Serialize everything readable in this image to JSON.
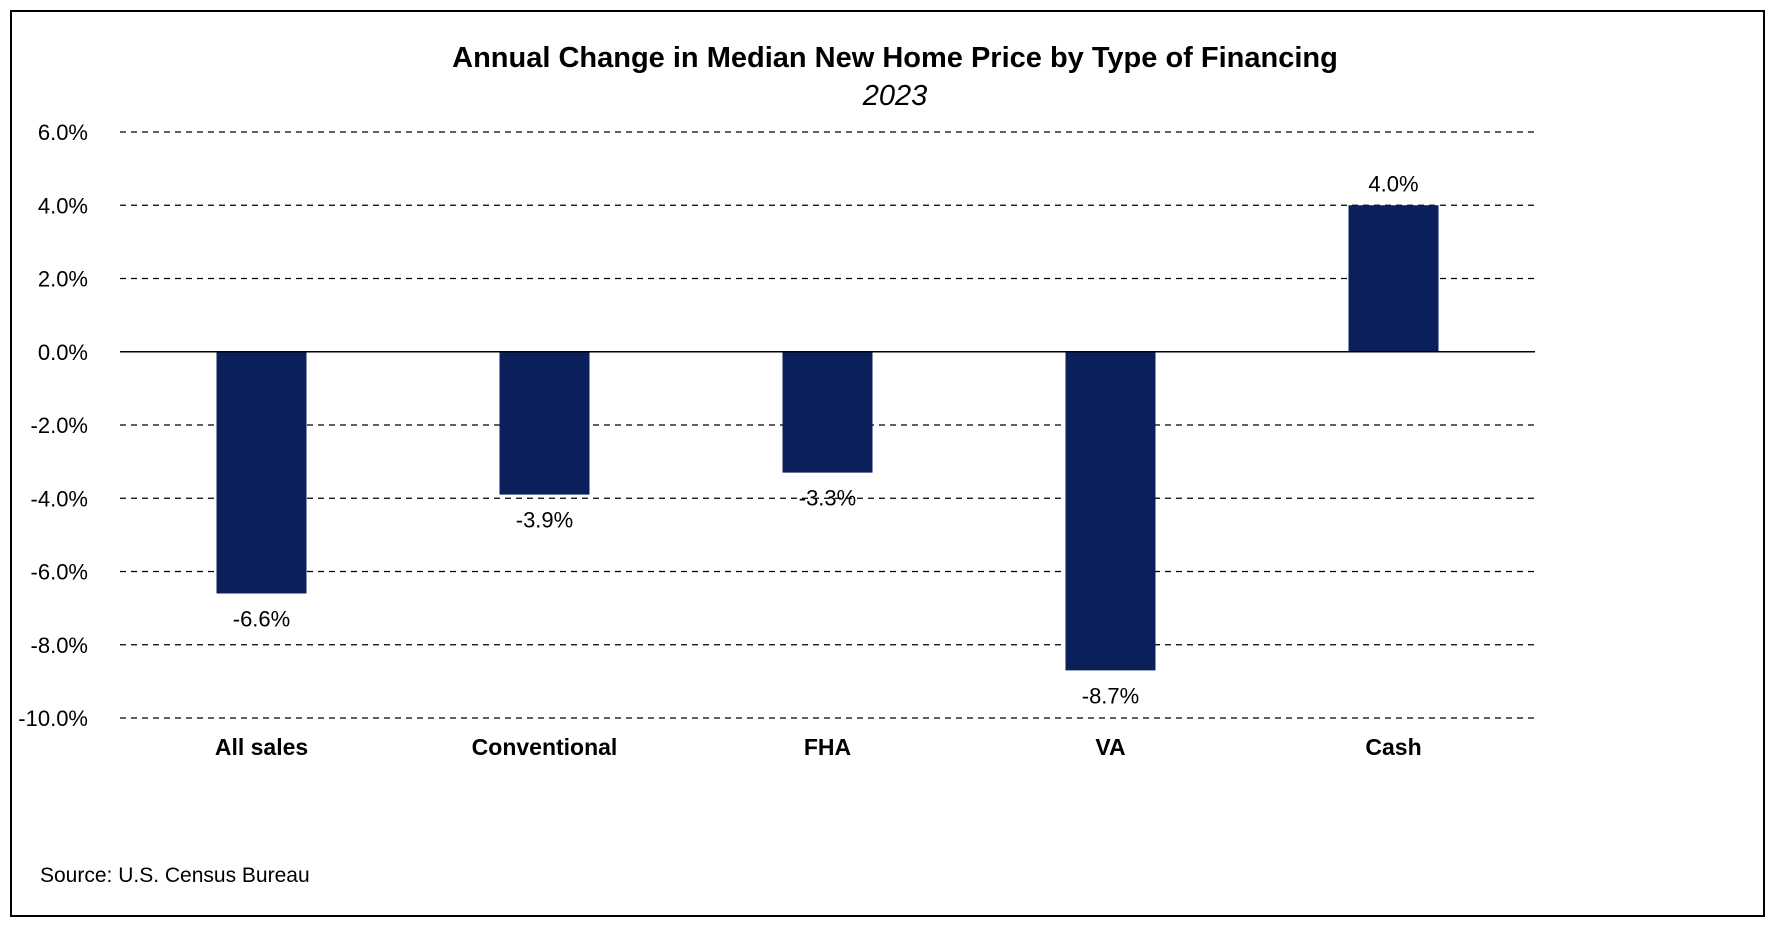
{
  "chart_data": {
    "type": "bar",
    "title": "Annual Change in Median New Home Price by Type of Financing",
    "subtitle": "2023",
    "categories": [
      "All sales",
      "Conventional",
      "FHA",
      "VA",
      "Cash"
    ],
    "values": [
      -6.6,
      -3.9,
      -3.3,
      -8.7,
      4.0
    ],
    "data_labels": [
      "-6.6%",
      "-3.9%",
      "-3.3%",
      "-8.7%",
      "4.0%"
    ],
    "ylim": [
      -10.0,
      6.0
    ],
    "y_ticks": [
      6.0,
      4.0,
      2.0,
      0.0,
      -2.0,
      -4.0,
      -6.0,
      -8.0,
      -10.0
    ],
    "y_tick_labels": [
      "6.0%",
      "4.0%",
      "2.0%",
      "0.0%",
      "-2.0%",
      "-4.0%",
      "-6.0%",
      "-8.0%",
      "-10.0%"
    ],
    "xlabel": "",
    "ylabel": "",
    "grid": "horizontal dashed",
    "legend": "none",
    "bar_color": "#0B1F5B",
    "source": "Source: U.S. Census Bureau"
  }
}
